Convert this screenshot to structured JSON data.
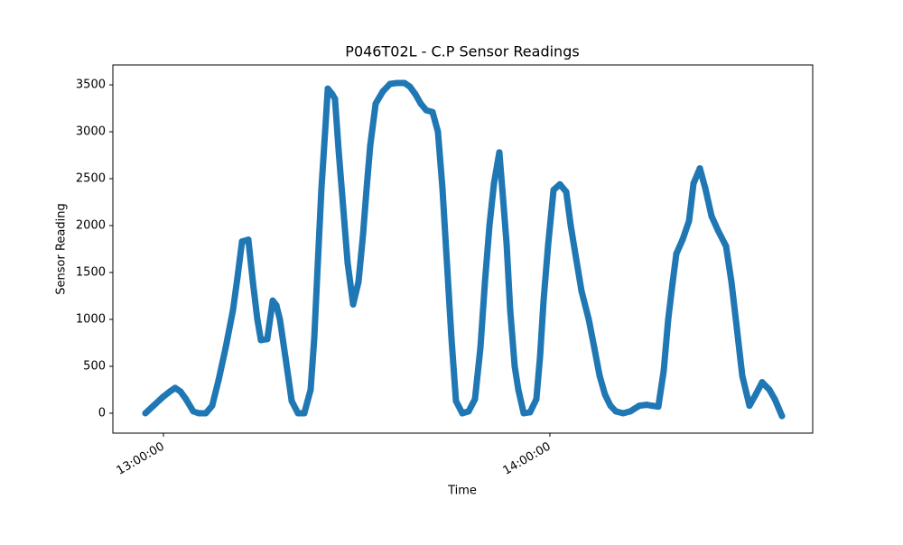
{
  "chart_data": {
    "type": "line",
    "marker": "circle",
    "title": "P046T02L - C.P Sensor Readings",
    "x_label": "Time",
    "y_label": "Sensor Reading",
    "color": "#1f77b4",
    "x": [
      "12:57:12",
      "12:58:27",
      "12:59:52",
      "13:00:59",
      "13:01:49",
      "13:02:40",
      "13:03:30",
      "13:04:38",
      "13:05:28",
      "13:06:35",
      "13:07:34",
      "13:08:33",
      "13:09:40",
      "13:10:48",
      "13:11:30",
      "13:12:12",
      "13:13:11",
      "13:13:53",
      "13:14:35",
      "13:15:08",
      "13:16:07",
      "13:16:58",
      "13:17:32",
      "13:18:05",
      "13:18:56",
      "13:19:55",
      "13:20:53",
      "13:21:52",
      "13:22:51",
      "13:23:25",
      "13:23:58",
      "13:24:32",
      "13:25:06",
      "13:25:31",
      "13:26:13",
      "13:26:38",
      "13:27:12",
      "13:27:54",
      "13:28:36",
      "13:29:27",
      "13:30:17",
      "13:30:59",
      "13:31:33",
      "13:32:06",
      "13:32:57",
      "13:34:04",
      "13:35:11",
      "13:36:19",
      "13:37:26",
      "13:38:16",
      "13:39:07",
      "13:39:57",
      "13:40:48",
      "13:41:47",
      "13:42:37",
      "13:43:19",
      "13:44:01",
      "13:44:43",
      "13:45:25",
      "13:46:24",
      "13:47:23",
      "13:48:22",
      "13:49:13",
      "13:49:55",
      "13:50:37",
      "13:51:19",
      "13:52:09",
      "13:52:43",
      "13:53:17",
      "13:53:50",
      "13:54:32",
      "13:55:06",
      "13:55:56",
      "13:56:55",
      "13:57:54",
      "13:58:28",
      "13:59:01",
      "13:59:44",
      "14:00:34",
      "14:01:33",
      "14:02:32",
      "14:03:14",
      "14:04:04",
      "14:04:55",
      "14:06:02",
      "14:06:53",
      "14:07:43",
      "14:08:33",
      "14:09:24",
      "14:10:14",
      "14:11:22",
      "14:12:29",
      "14:13:53",
      "14:15:00",
      "14:15:51",
      "14:16:50",
      "14:17:40",
      "14:18:22",
      "14:19:04",
      "14:19:38",
      "14:20:36",
      "14:21:36",
      "14:22:18",
      "14:23:17",
      "14:24:07",
      "14:25:06",
      "14:26:05",
      "14:27:21",
      "14:28:11",
      "14:29:02",
      "14:29:52",
      "14:30:59",
      "14:31:58",
      "14:32:57",
      "14:34:05",
      "14:34:55",
      "14:36:02"
    ],
    "values": [
      0,
      80,
      170,
      230,
      270,
      230,
      150,
      20,
      0,
      0,
      80,
      350,
      700,
      1100,
      1450,
      1830,
      1850,
      1400,
      1000,
      780,
      790,
      1200,
      1150,
      1000,
      600,
      130,
      0,
      0,
      250,
      800,
      1600,
      2400,
      3000,
      3460,
      3400,
      3350,
      2800,
      2200,
      1600,
      1160,
      1400,
      1900,
      2400,
      2850,
      3300,
      3430,
      3510,
      3520,
      3520,
      3480,
      3400,
      3300,
      3230,
      3210,
      3000,
      2400,
      1600,
      800,
      130,
      0,
      20,
      150,
      700,
      1400,
      2000,
      2450,
      2780,
      2300,
      1800,
      1100,
      500,
      250,
      0,
      10,
      150,
      600,
      1200,
      1800,
      2380,
      2440,
      2360,
      2000,
      1650,
      1300,
      1000,
      700,
      400,
      200,
      80,
      20,
      0,
      20,
      80,
      90,
      80,
      70,
      450,
      1000,
      1400,
      1700,
      1850,
      2050,
      2450,
      2610,
      2400,
      2100,
      1950,
      1780,
      1400,
      900,
      400,
      80,
      200,
      330,
      250,
      150,
      -30
    ],
    "xlim": [
      "12:52:09",
      "14:40:48"
    ],
    "xticks": [
      "13:00:00",
      "14:00:00"
    ],
    "ylim": [
      -212,
      3712
    ],
    "yticks": [
      0,
      500,
      1000,
      1500,
      2000,
      2500,
      3000,
      3500
    ],
    "grid": false
  }
}
